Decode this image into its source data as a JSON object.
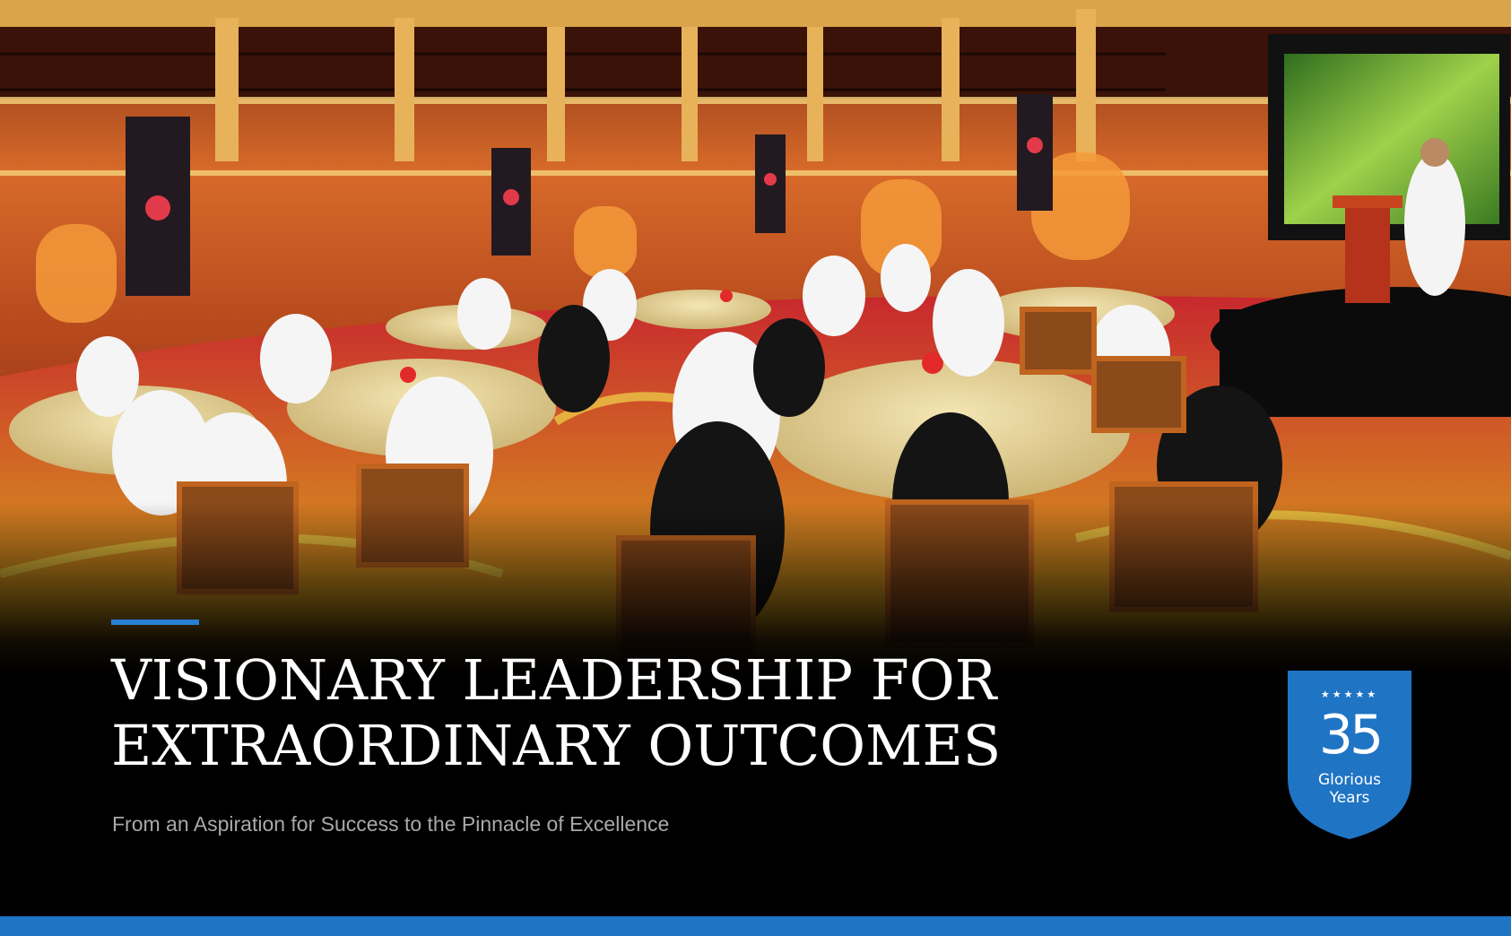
{
  "heading": {
    "line1": "VISIONARY LEADERSHIP FOR",
    "line2": "EXTRAORDINARY OUTCOMES"
  },
  "subtitle": "From an Aspiration for Success to the Pinnacle of Excellence",
  "badge": {
    "stars": "★★★★★",
    "number": "35",
    "line1": "Glorious",
    "line2": "Years"
  },
  "colors": {
    "accent": "#2a7fd4",
    "badge_blue": "#1f74c4",
    "background": "#000000"
  },
  "photo": {
    "description_icon": "conference-hall-photo"
  }
}
